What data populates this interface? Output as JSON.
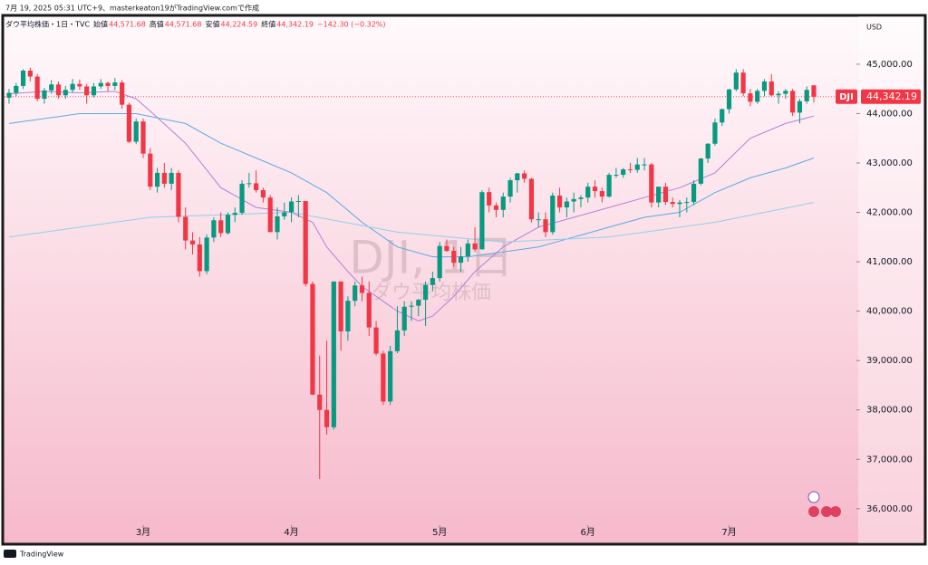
{
  "header": {
    "status": "7月 19, 2025 05:31 UTC+9、masterkeaton19がTradingView.comで作成",
    "symbol": "ダウ平均株価・1日・TVC",
    "open_label": "始値",
    "open": "44,571.68",
    "high_label": "高値",
    "high": "44,571.68",
    "low_label": "安値",
    "low": "44,224.59",
    "close_label": "終値",
    "close": "44,342.19",
    "change": "−142.30 (−0.32%)",
    "currency": "USD"
  },
  "footer": {
    "brand": "TradingView"
  },
  "chart_data": {
    "type": "candlestick",
    "watermark": "DJI, 1日",
    "watermark_sub": "ダウ平均株価",
    "up_color": "#089981",
    "down_color": "#f23645",
    "grid": false,
    "candles": [
      [
        44320,
        44500,
        44200,
        44420
      ],
      [
        44420,
        44620,
        44350,
        44560
      ],
      [
        44560,
        44900,
        44500,
        44870
      ],
      [
        44870,
        44930,
        44650,
        44750
      ],
      [
        44750,
        44800,
        44250,
        44300
      ],
      [
        44300,
        44520,
        44200,
        44470
      ],
      [
        44470,
        44680,
        44400,
        44590
      ],
      [
        44590,
        44650,
        44300,
        44370
      ],
      [
        44370,
        44560,
        44300,
        44480
      ],
      [
        44480,
        44700,
        44420,
        44600
      ],
      [
        44600,
        44690,
        44480,
        44550
      ],
      [
        44550,
        44600,
        44200,
        44370
      ],
      [
        44370,
        44620,
        44330,
        44550
      ],
      [
        44550,
        44700,
        44500,
        44620
      ],
      [
        44620,
        44650,
        44450,
        44560
      ],
      [
        44560,
        44720,
        44480,
        44630
      ],
      [
        44630,
        44680,
        44100,
        44180
      ],
      [
        44180,
        44220,
        43400,
        43430
      ],
      [
        43430,
        43900,
        43380,
        43840
      ],
      [
        43840,
        43900,
        43100,
        43190
      ],
      [
        43190,
        43300,
        42450,
        42520
      ],
      [
        42520,
        42900,
        42400,
        42800
      ],
      [
        42800,
        43000,
        42500,
        42580
      ],
      [
        42580,
        42900,
        42450,
        42800
      ],
      [
        42800,
        42850,
        41800,
        41910
      ],
      [
        41910,
        42100,
        41250,
        41430
      ],
      [
        41430,
        41600,
        41150,
        41350
      ],
      [
        41350,
        41500,
        40700,
        40810
      ],
      [
        40810,
        41550,
        40750,
        41490
      ],
      [
        41490,
        41900,
        41400,
        41840
      ],
      [
        41840,
        42000,
        41500,
        41580
      ],
      [
        41580,
        42000,
        41550,
        41950
      ],
      [
        41950,
        42100,
        41800,
        41990
      ],
      [
        41990,
        42650,
        41950,
        42580
      ],
      [
        42580,
        42800,
        42500,
        42590
      ],
      [
        42590,
        42850,
        42400,
        42450
      ],
      [
        42450,
        42500,
        42200,
        42300
      ],
      [
        42300,
        42350,
        41600,
        41600
      ],
      [
        41600,
        42100,
        41450,
        41920
      ],
      [
        41920,
        42200,
        41850,
        42000
      ],
      [
        42000,
        42300,
        41800,
        42220
      ],
      [
        42220,
        42350,
        41900,
        42230
      ],
      [
        42230,
        42230,
        40500,
        40550
      ],
      [
        40550,
        40600,
        38300,
        38310
      ],
      [
        38310,
        39100,
        36600,
        38000
      ],
      [
        38000,
        39400,
        37500,
        37650
      ],
      [
        37650,
        40600,
        37600,
        40600
      ],
      [
        40600,
        40600,
        39200,
        39590
      ],
      [
        39590,
        40300,
        39400,
        40210
      ],
      [
        40210,
        40600,
        40100,
        40520
      ],
      [
        40520,
        40700,
        40200,
        40370
      ],
      [
        40370,
        40600,
        39500,
        39670
      ],
      [
        39670,
        39800,
        39100,
        39140
      ],
      [
        39140,
        39200,
        38100,
        38170
      ],
      [
        38170,
        39300,
        38100,
        39190
      ],
      [
        39190,
        40100,
        39150,
        39610
      ],
      [
        39610,
        40200,
        39500,
        40090
      ],
      [
        40090,
        40200,
        39800,
        40110
      ],
      [
        40110,
        40250,
        39900,
        40230
      ],
      [
        40230,
        40600,
        39700,
        40530
      ],
      [
        40530,
        40800,
        40400,
        40670
      ],
      [
        40670,
        41400,
        40600,
        41320
      ],
      [
        41320,
        41450,
        41200,
        41220
      ],
      [
        41220,
        41300,
        40900,
        40980
      ],
      [
        40980,
        41300,
        40800,
        41110
      ],
      [
        41110,
        41450,
        41000,
        41370
      ],
      [
        41370,
        41700,
        41200,
        41250
      ],
      [
        41250,
        42450,
        41250,
        42410
      ],
      [
        42410,
        42500,
        42000,
        42140
      ],
      [
        42140,
        42200,
        41900,
        42050
      ],
      [
        42050,
        42400,
        41900,
        42320
      ],
      [
        42320,
        42700,
        42200,
        42650
      ],
      [
        42650,
        42800,
        42400,
        42790
      ],
      [
        42790,
        42850,
        42600,
        42680
      ],
      [
        42680,
        42700,
        41800,
        41860
      ],
      [
        41860,
        42000,
        41700,
        41860
      ],
      [
        41860,
        42000,
        41500,
        41600
      ],
      [
        41600,
        42400,
        41550,
        42340
      ],
      [
        42340,
        42500,
        42000,
        42100
      ],
      [
        42100,
        42300,
        41900,
        42220
      ],
      [
        42220,
        42400,
        42000,
        42270
      ],
      [
        42270,
        42350,
        42100,
        42300
      ],
      [
        42300,
        42600,
        42200,
        42520
      ],
      [
        42520,
        42650,
        42300,
        42430
      ],
      [
        42430,
        42500,
        42200,
        42320
      ],
      [
        42320,
        42800,
        42300,
        42760
      ],
      [
        42760,
        42900,
        42700,
        42760
      ],
      [
        42760,
        42900,
        42700,
        42870
      ],
      [
        42870,
        43000,
        42800,
        42860
      ],
      [
        42860,
        43100,
        42800,
        42970
      ],
      [
        42970,
        43100,
        42850,
        42970
      ],
      [
        42970,
        43000,
        42100,
        42200
      ],
      [
        42200,
        42500,
        42100,
        42520
      ],
      [
        42520,
        42600,
        42150,
        42210
      ],
      [
        42210,
        42300,
        42100,
        42170
      ],
      [
        42170,
        42250,
        41900,
        42200
      ],
      [
        42200,
        42300,
        42000,
        42210
      ],
      [
        42210,
        42650,
        42150,
        42580
      ],
      [
        42580,
        43100,
        42550,
        43090
      ],
      [
        43090,
        43400,
        43000,
        43390
      ],
      [
        43390,
        43900,
        43350,
        43820
      ],
      [
        43820,
        44100,
        43750,
        44090
      ],
      [
        44090,
        44500,
        44000,
        44490
      ],
      [
        44490,
        44900,
        44450,
        44830
      ],
      [
        44830,
        44900,
        44350,
        44410
      ],
      [
        44410,
        44500,
        44150,
        44240
      ],
      [
        44240,
        44500,
        44200,
        44460
      ],
      [
        44460,
        44700,
        44350,
        44650
      ],
      [
        44650,
        44800,
        44350,
        44370
      ],
      [
        44370,
        44450,
        44200,
        44400
      ],
      [
        44400,
        44500,
        44300,
        44460
      ],
      [
        44460,
        44500,
        43950,
        44020
      ],
      [
        44020,
        44300,
        43800,
        44250
      ],
      [
        44250,
        44550,
        44200,
        44480
      ],
      [
        44571.68,
        44571.68,
        44224.59,
        44342.19
      ]
    ],
    "series": [
      {
        "color": "#b47fd8",
        "x": [
          0,
          5,
          10,
          15,
          18,
          20,
          25,
          30,
          35,
          40,
          43,
          45,
          48,
          50,
          53,
          55,
          58,
          60,
          63,
          66,
          70,
          75,
          80,
          85,
          90,
          95,
          100,
          105,
          110,
          114
        ],
        "values": [
          44400,
          44450,
          44420,
          44450,
          44300,
          44050,
          43400,
          42500,
          42100,
          42000,
          41800,
          41300,
          40800,
          40500,
          40200,
          40000,
          39800,
          39900,
          40300,
          40800,
          41300,
          41700,
          41900,
          42100,
          42300,
          42500,
          42800,
          43500,
          43800,
          43950
        ]
      },
      {
        "color": "#5aa9e6",
        "x": [
          0,
          10,
          18,
          25,
          30,
          35,
          40,
          45,
          50,
          55,
          60,
          65,
          70,
          75,
          80,
          85,
          90,
          95,
          100,
          105,
          110,
          114
        ],
        "values": [
          43800,
          44000,
          44000,
          43800,
          43400,
          43100,
          42800,
          42400,
          41800,
          41300,
          41100,
          41100,
          41200,
          41300,
          41500,
          41700,
          41900,
          42000,
          42400,
          42700,
          42900,
          43100
        ]
      },
      {
        "color": "#8fd0ea",
        "x": [
          0,
          20,
          40,
          55,
          70,
          85,
          100,
          114
        ],
        "values": [
          41500,
          41900,
          42000,
          41600,
          41400,
          41500,
          41800,
          42200
        ]
      }
    ],
    "xlim": [
      -1,
      118
    ],
    "xticks": [
      {
        "value": 19,
        "label": "3月"
      },
      {
        "value": 40,
        "label": "4月"
      },
      {
        "value": 61,
        "label": "5月"
      },
      {
        "value": 82,
        "label": "6月"
      },
      {
        "value": 102,
        "label": "7月"
      }
    ],
    "ylim": [
      35300,
      45970
    ],
    "yticks": [
      {
        "value": 36000,
        "label": "36,000.00"
      },
      {
        "value": 37000,
        "label": "37,000.00"
      },
      {
        "value": 38000,
        "label": "38,000.00"
      },
      {
        "value": 39000,
        "label": "39,000.00"
      },
      {
        "value": 40000,
        "label": "40,000.00"
      },
      {
        "value": 41000,
        "label": "41,000.00"
      },
      {
        "value": 42000,
        "label": "42,000.00"
      },
      {
        "value": 43000,
        "label": "43,000.00"
      },
      {
        "value": 44000,
        "label": "44,000.00"
      },
      {
        "value": 45000,
        "label": "45,000.00"
      }
    ],
    "last_price": {
      "value": 44342.19,
      "label": "44,342.19",
      "symbol": "DJI"
    }
  }
}
